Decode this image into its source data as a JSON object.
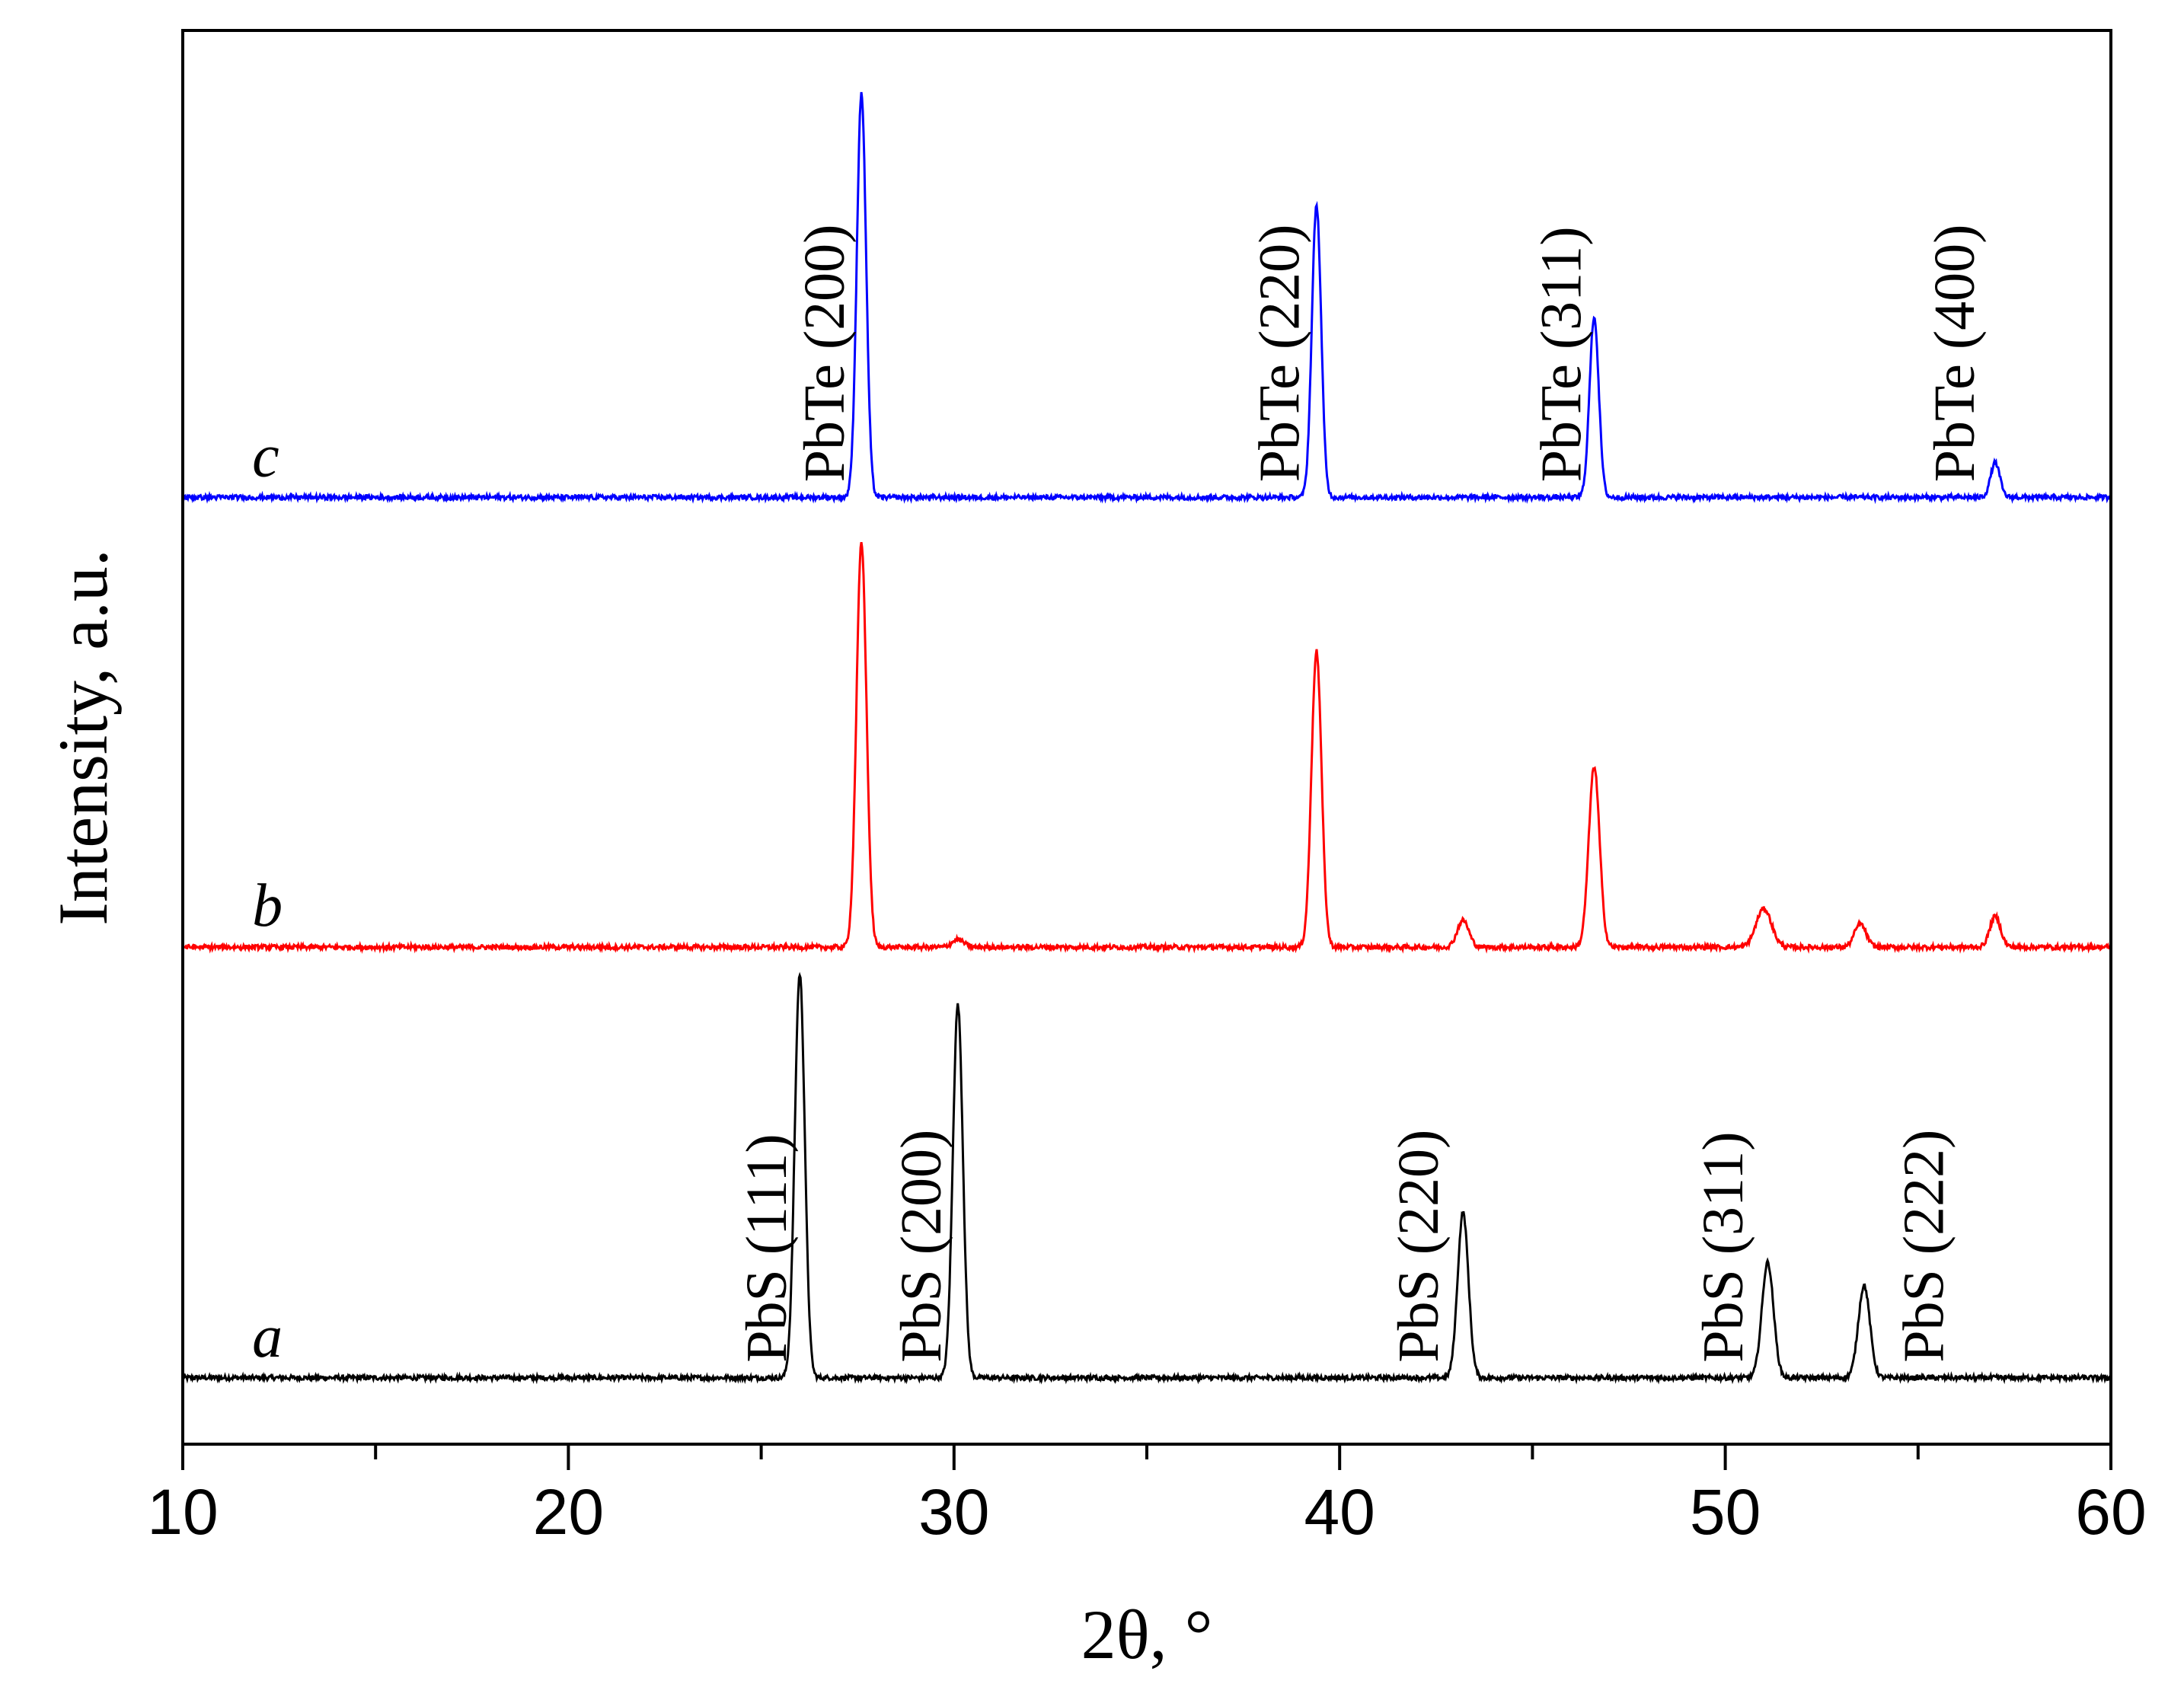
{
  "chart_data": {
    "type": "line",
    "xlabel": "2θ, °",
    "ylabel": "Intensity, a.u.",
    "xlim": [
      10,
      60
    ],
    "x_major_ticks": [
      10,
      20,
      30,
      40,
      50,
      60
    ],
    "x_minor_step": 5,
    "y_ticks": "none",
    "grid": false,
    "series": [
      {
        "name": "a",
        "color": "#000000",
        "offset": 0,
        "baseline": 0.05,
        "noise": 0.006,
        "peaks": [
          {
            "x": 26.0,
            "height": 1.05,
            "width": 0.13
          },
          {
            "x": 30.1,
            "height": 0.97,
            "width": 0.13
          },
          {
            "x": 43.2,
            "height": 0.43,
            "width": 0.14
          },
          {
            "x": 51.1,
            "height": 0.3,
            "width": 0.15
          },
          {
            "x": 53.6,
            "height": 0.24,
            "width": 0.15
          }
        ]
      },
      {
        "name": "b",
        "color": "#ff0000",
        "offset": 1.17,
        "baseline": 0.0,
        "noise": 0.006,
        "peaks": [
          {
            "x": 27.6,
            "height": 1.05,
            "width": 0.13
          },
          {
            "x": 30.1,
            "height": 0.02,
            "width": 0.15
          },
          {
            "x": 39.4,
            "height": 0.77,
            "width": 0.13
          },
          {
            "x": 43.2,
            "height": 0.07,
            "width": 0.15
          },
          {
            "x": 46.6,
            "height": 0.47,
            "width": 0.14
          },
          {
            "x": 51.0,
            "height": 0.1,
            "width": 0.2
          },
          {
            "x": 53.5,
            "height": 0.06,
            "width": 0.15
          },
          {
            "x": 57.0,
            "height": 0.08,
            "width": 0.14
          }
        ]
      },
      {
        "name": "c",
        "color": "#0000ff",
        "offset": 2.34,
        "baseline": 0.0,
        "noise": 0.006,
        "peaks": [
          {
            "x": 27.6,
            "height": 1.05,
            "width": 0.12
          },
          {
            "x": 39.4,
            "height": 0.76,
            "width": 0.12
          },
          {
            "x": 46.6,
            "height": 0.47,
            "width": 0.12
          },
          {
            "x": 57.0,
            "height": 0.09,
            "width": 0.12
          }
        ]
      }
    ],
    "annotations": [
      {
        "text": "PbS (111)",
        "x": 25.3,
        "series": "a"
      },
      {
        "text": "PbS (200)",
        "x": 29.3,
        "series": "a"
      },
      {
        "text": "PbS (220)",
        "x": 42.2,
        "series": "a"
      },
      {
        "text": "PbS (311)",
        "x": 50.1,
        "series": "a"
      },
      {
        "text": "PbS (222)",
        "x": 55.3,
        "series": "a"
      },
      {
        "text": "PbTe (200)",
        "x": 26.8,
        "series": "c"
      },
      {
        "text": "PbTe (220)",
        "x": 38.6,
        "series": "c"
      },
      {
        "text": "PbTe (311)",
        "x": 45.9,
        "series": "c"
      },
      {
        "text": "PbTe (400)",
        "x": 56.1,
        "series": "c"
      }
    ]
  }
}
